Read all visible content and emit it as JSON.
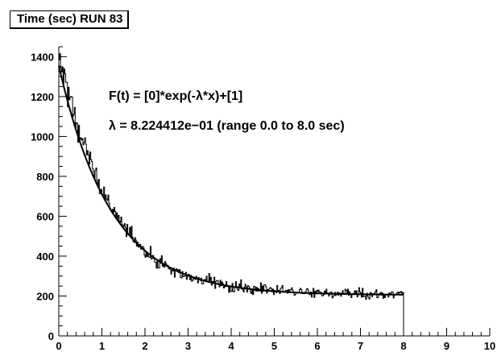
{
  "chart_data": {
    "type": "histogram",
    "title": "Time (sec) RUN 83",
    "xlim": [
      0,
      10
    ],
    "ylim": [
      0,
      1450
    ],
    "x_ticks": [
      "0",
      "1",
      "2",
      "3",
      "4",
      "5",
      "6",
      "7",
      "8",
      "9",
      "10"
    ],
    "y_ticks": [
      "0",
      "200",
      "400",
      "600",
      "800",
      "1000",
      "1200",
      "1400"
    ],
    "x_tick_values": [
      0,
      1,
      2,
      3,
      4,
      5,
      6,
      7,
      8,
      9,
      10
    ],
    "y_tick_values": [
      0,
      200,
      400,
      600,
      800,
      1000,
      1200,
      1400
    ],
    "grid": false,
    "histogram": {
      "range": [
        0,
        8
      ],
      "x": [
        0,
        0.5,
        1,
        1.5,
        2,
        2.5,
        3,
        3.5,
        4,
        4.5,
        5,
        5.5,
        6,
        6.5,
        7,
        7.5,
        8
      ],
      "values": [
        1400,
        1000,
        720,
        560,
        420,
        340,
        300,
        265,
        245,
        235,
        228,
        222,
        215,
        213,
        210,
        208,
        205
      ]
    },
    "fit": {
      "formula": "F(t) = [0]*exp(-λ*x)+[1]",
      "parameter_text": "λ = 8.224412e−01 (range 0.0 to 8.0 sec)",
      "lambda": 0.8224412,
      "p0": 1150,
      "p1": 205,
      "range": [
        0,
        8
      ]
    }
  }
}
